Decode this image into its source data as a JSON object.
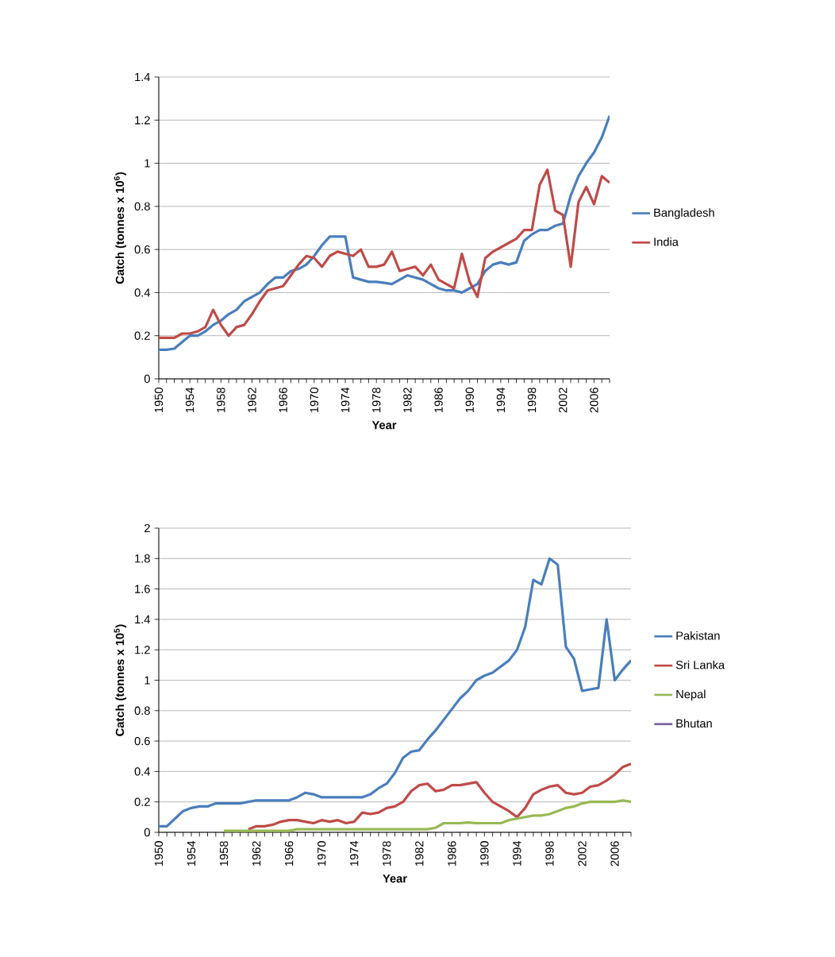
{
  "chart_data": [
    {
      "type": "line",
      "xlabel": "Year",
      "ylabel": "Catch (tonnes x 10$^{6}$)",
      "categories": [
        "1950",
        null,
        null,
        null,
        "1954",
        null,
        null,
        null,
        "1958",
        null,
        null,
        null,
        "1962",
        null,
        null,
        null,
        "1966",
        null,
        null,
        null,
        "1970",
        null,
        null,
        null,
        "1974",
        null,
        null,
        null,
        "1978",
        null,
        null,
        null,
        "1982",
        null,
        null,
        null,
        "1986",
        null,
        null,
        null,
        "1990",
        null,
        null,
        null,
        "1994",
        null,
        null,
        null,
        "1998",
        null,
        null,
        null,
        "2002",
        null,
        null,
        null,
        "2006",
        null,
        null
      ],
      "ylim": [
        0,
        1.4
      ],
      "yticks": [
        0,
        0.2,
        0.4,
        0.6,
        0.8,
        1,
        1.2,
        1.4
      ],
      "grid": "y",
      "legend": "right",
      "series": [
        {
          "name": "Bangladesh",
          "color": "#4a7ebb",
          "values": [
            0.135,
            0.135,
            0.14,
            0.17,
            0.2,
            0.2,
            0.22,
            0.25,
            0.27,
            0.3,
            0.32,
            0.36,
            0.38,
            0.4,
            0.44,
            0.47,
            0.47,
            0.5,
            0.51,
            0.53,
            0.57,
            0.62,
            0.66,
            0.66,
            0.66,
            0.47,
            0.46,
            0.45,
            0.45,
            0.445,
            0.44,
            0.46,
            0.48,
            0.47,
            0.46,
            0.44,
            0.42,
            0.41,
            0.41,
            0.4,
            0.42,
            0.44,
            0.5,
            0.53,
            0.54,
            0.53,
            0.54,
            0.64,
            0.67,
            0.69,
            0.69,
            0.71,
            0.72,
            0.85,
            0.94,
            1.0,
            1.05,
            1.12,
            1.22
          ]
        },
        {
          "name": "India",
          "color": "#be4b48",
          "values": [
            0.19,
            0.19,
            0.19,
            0.21,
            0.21,
            0.22,
            0.24,
            0.32,
            0.25,
            0.2,
            0.24,
            0.25,
            0.3,
            0.36,
            0.41,
            0.42,
            0.43,
            0.48,
            0.53,
            0.57,
            0.56,
            0.52,
            0.57,
            0.59,
            0.58,
            0.57,
            0.6,
            0.52,
            0.52,
            0.53,
            0.59,
            0.5,
            0.51,
            0.52,
            0.48,
            0.53,
            0.46,
            0.44,
            0.42,
            0.58,
            0.45,
            0.38,
            0.56,
            0.59,
            0.61,
            0.63,
            0.65,
            0.69,
            0.69,
            0.9,
            0.97,
            0.78,
            0.76,
            0.52,
            0.82,
            0.89,
            0.81,
            0.94,
            0.91
          ]
        }
      ]
    },
    {
      "type": "line",
      "xlabel": "Year",
      "ylabel": "Catch (tonnes x 10$^{5}$)",
      "categories": [
        "1950",
        null,
        null,
        null,
        "1954",
        null,
        null,
        null,
        "1958",
        null,
        null,
        null,
        "1962",
        null,
        null,
        null,
        "1966",
        null,
        null,
        null,
        "1970",
        null,
        null,
        null,
        "1974",
        null,
        null,
        null,
        "1978",
        null,
        null,
        null,
        "1982",
        null,
        null,
        null,
        "1986",
        null,
        null,
        null,
        "1990",
        null,
        null,
        null,
        "1994",
        null,
        null,
        null,
        "1998",
        null,
        null,
        null,
        "2002",
        null,
        null,
        null,
        "2006",
        null,
        null
      ],
      "ylim": [
        0,
        2
      ],
      "yticks": [
        0,
        0.2,
        0.4,
        0.6,
        0.8,
        1,
        1.2,
        1.4,
        1.6,
        1.8,
        2
      ],
      "grid": "y",
      "legend": "right",
      "series": [
        {
          "name": "Pakistan",
          "color": "#4a7ebb",
          "values": [
            0.04,
            0.04,
            0.09,
            0.14,
            0.16,
            0.17,
            0.17,
            0.19,
            0.19,
            0.19,
            0.19,
            0.2,
            0.21,
            0.21,
            0.21,
            0.21,
            0.21,
            0.23,
            0.26,
            0.25,
            0.23,
            0.23,
            0.23,
            0.23,
            0.23,
            0.23,
            0.25,
            0.29,
            0.32,
            0.39,
            0.49,
            0.53,
            0.54,
            0.61,
            0.67,
            0.74,
            0.81,
            0.88,
            0.93,
            1.0,
            1.03,
            1.05,
            1.09,
            1.13,
            1.2,
            1.35,
            1.66,
            1.63,
            1.8,
            1.76,
            1.22,
            1.14,
            0.93,
            0.94,
            0.95,
            1.4,
            1.0,
            1.07,
            1.13
          ]
        },
        {
          "name": "Sri Lanka",
          "color": "#be4b48",
          "values": [
            null,
            null,
            null,
            null,
            null,
            null,
            null,
            null,
            null,
            null,
            null,
            0.02,
            0.04,
            0.04,
            0.05,
            0.07,
            0.08,
            0.08,
            0.07,
            0.06,
            0.08,
            0.07,
            0.08,
            0.06,
            0.07,
            0.13,
            0.12,
            0.13,
            0.16,
            0.17,
            0.2,
            0.27,
            0.31,
            0.32,
            0.27,
            0.28,
            0.31,
            0.31,
            0.32,
            0.33,
            0.26,
            0.2,
            0.17,
            0.14,
            0.1,
            0.16,
            0.25,
            0.28,
            0.3,
            0.31,
            0.26,
            0.25,
            0.26,
            0.3,
            0.31,
            0.34,
            0.38,
            0.43,
            0.45
          ]
        },
        {
          "name": "Nepal",
          "color": "#98b954",
          "values": [
            null,
            null,
            null,
            null,
            null,
            null,
            null,
            null,
            0.01,
            0.01,
            0.01,
            0.01,
            0.01,
            0.01,
            0.01,
            0.01,
            0.01,
            0.02,
            0.02,
            0.02,
            0.02,
            0.02,
            0.02,
            0.02,
            0.02,
            0.02,
            0.02,
            0.02,
            0.02,
            0.02,
            0.02,
            0.02,
            0.02,
            0.02,
            0.03,
            0.06,
            0.06,
            0.06,
            0.065,
            0.06,
            0.06,
            0.06,
            0.06,
            0.08,
            0.09,
            0.1,
            0.11,
            0.11,
            0.12,
            0.14,
            0.16,
            0.17,
            0.19,
            0.2,
            0.2,
            0.2,
            0.2,
            0.21,
            0.2
          ]
        },
        {
          "name": "Bhutan",
          "color": "#7d60a0",
          "values": [
            null,
            null,
            null,
            null,
            null,
            null,
            null,
            null,
            null,
            null,
            null,
            null,
            null,
            null,
            null,
            null,
            null,
            null,
            null,
            null,
            null,
            null,
            null,
            null,
            null,
            null,
            null,
            null,
            null,
            null,
            null,
            null,
            null,
            null,
            null,
            null,
            null,
            null,
            null,
            null,
            null,
            null,
            null,
            null,
            null,
            null,
            null,
            null,
            null,
            null,
            null,
            null,
            null,
            null,
            null,
            null,
            null,
            null,
            null
          ]
        }
      ]
    }
  ]
}
